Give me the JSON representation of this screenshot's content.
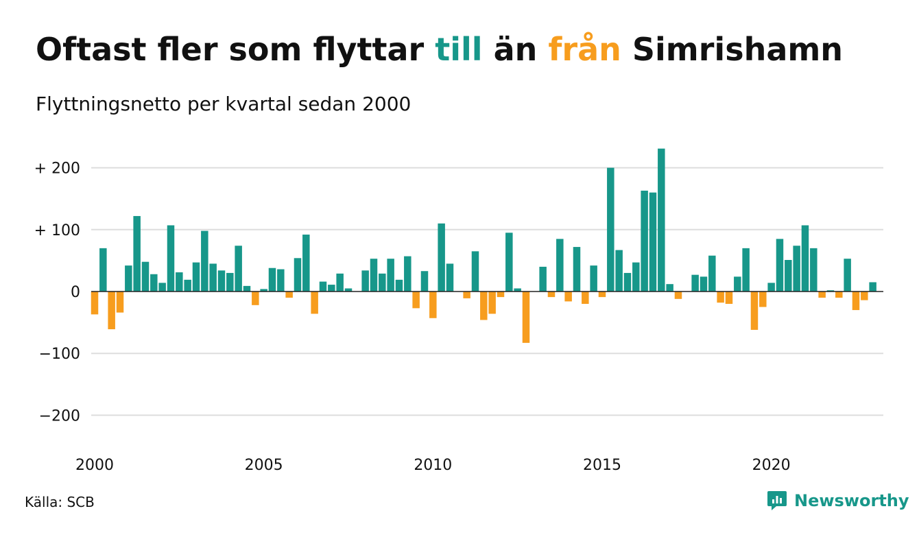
{
  "title": {
    "part1": "Oftast fler som flyttar ",
    "part2": "till",
    "part3": " än ",
    "part4": "från",
    "part5": " Simrishamn"
  },
  "subtitle": "Flyttningsnetto per kvartal sedan 2000",
  "source": "Källa: SCB",
  "logo": "Newsworthy",
  "colors": {
    "positive": "#17978a",
    "negative": "#f79d1e",
    "grid": "#dddddd",
    "text": "#111111"
  },
  "chart_data": {
    "type": "bar",
    "x_start": "2000",
    "x_ticks": [
      "2000",
      "2005",
      "2010",
      "2015",
      "2020"
    ],
    "y_ticks": [
      {
        "value": 200,
        "label": "+ 200"
      },
      {
        "value": 100,
        "label": "+ 100"
      },
      {
        "value": 0,
        "label": "0"
      },
      {
        "value": -100,
        "label": "−100"
      },
      {
        "value": -200,
        "label": "−200"
      }
    ],
    "ylim": [
      -250,
      230
    ],
    "grid": true,
    "values": [
      -37,
      70,
      -61,
      -34,
      42,
      122,
      48,
      28,
      14,
      107,
      31,
      19,
      47,
      98,
      45,
      34,
      30,
      74,
      9,
      -22,
      4,
      38,
      36,
      -10,
      54,
      92,
      -36,
      16,
      11,
      29,
      5,
      0,
      34,
      53,
      29,
      53,
      19,
      57,
      -27,
      33,
      -43,
      110,
      45,
      0,
      -11,
      65,
      -46,
      -36,
      -9,
      95,
      5,
      -83,
      0,
      40,
      -9,
      85,
      -16,
      72,
      -20,
      42,
      -9,
      200,
      67,
      30,
      47,
      163,
      160,
      231,
      12,
      -12,
      0,
      27,
      24,
      58,
      -18,
      -20,
      24,
      70,
      -62,
      -25,
      14,
      85,
      51,
      74,
      107,
      70,
      -10,
      2,
      -10,
      53,
      -30,
      -14,
      15
    ]
  }
}
